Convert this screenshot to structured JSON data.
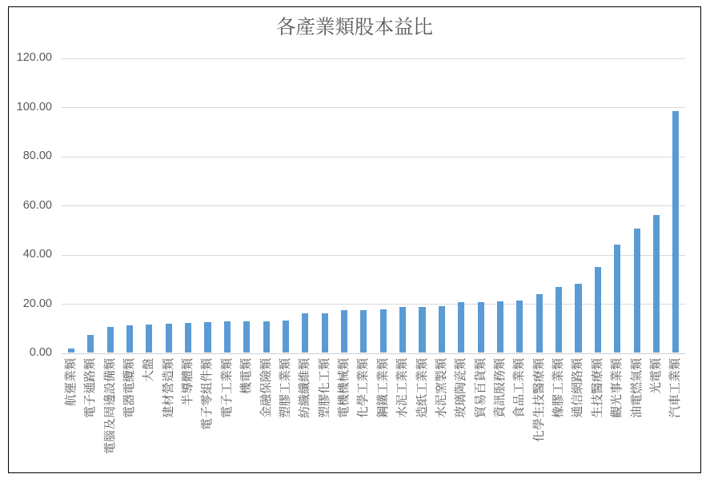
{
  "chart_data": {
    "type": "bar",
    "title": "各產業類股本益比",
    "categories": [
      "航運業類",
      "電子通路類",
      "電腦及周邊設備類",
      "電器電纜類",
      "大盤",
      "建材營造類",
      "半導體類",
      "電子零組件類",
      "電子工業類",
      "機電類",
      "金融保險類",
      "塑膠工業類",
      "紡織纖維類",
      "塑膠化工類",
      "電機機械類",
      "化學工業類",
      "鋼鐵工業類",
      "水泥工業類",
      "造紙工業類",
      "水泥窯製類",
      "玻璃陶瓷類",
      "貿易百貨類",
      "資訊服務類",
      "食品工業類",
      "化學生技醫療類",
      "橡膠工業類",
      "通信網路類",
      "生技醫療類",
      "觀光事業類",
      "油電燃氣類",
      "光電類",
      "汽車工業類"
    ],
    "values": [
      1.7,
      7.3,
      10.6,
      11.2,
      11.6,
      11.8,
      12.3,
      12.4,
      13.0,
      12.8,
      12.7,
      13.2,
      16.0,
      16.2,
      17.4,
      17.3,
      17.8,
      18.6,
      18.8,
      19.1,
      20.7,
      20.6,
      21.0,
      21.3,
      23.8,
      26.8,
      28.1,
      34.9,
      44.0,
      50.5,
      56.0,
      98.5
    ],
    "xlabel": "",
    "ylabel": "",
    "ylim": [
      0,
      120
    ],
    "ytick_step": 20,
    "ytick_labels": [
      "0.00",
      "20.00",
      "40.00",
      "60.00",
      "80.00",
      "100.00",
      "120.00"
    ],
    "grid": true,
    "legend": "none",
    "colors": {
      "bar": "#5B9BD5",
      "gridline": "#D9D9D9",
      "axis_line": "#D0D0D0",
      "tick_label": "#595959",
      "category_label": "#595959",
      "title": "#595959"
    }
  }
}
